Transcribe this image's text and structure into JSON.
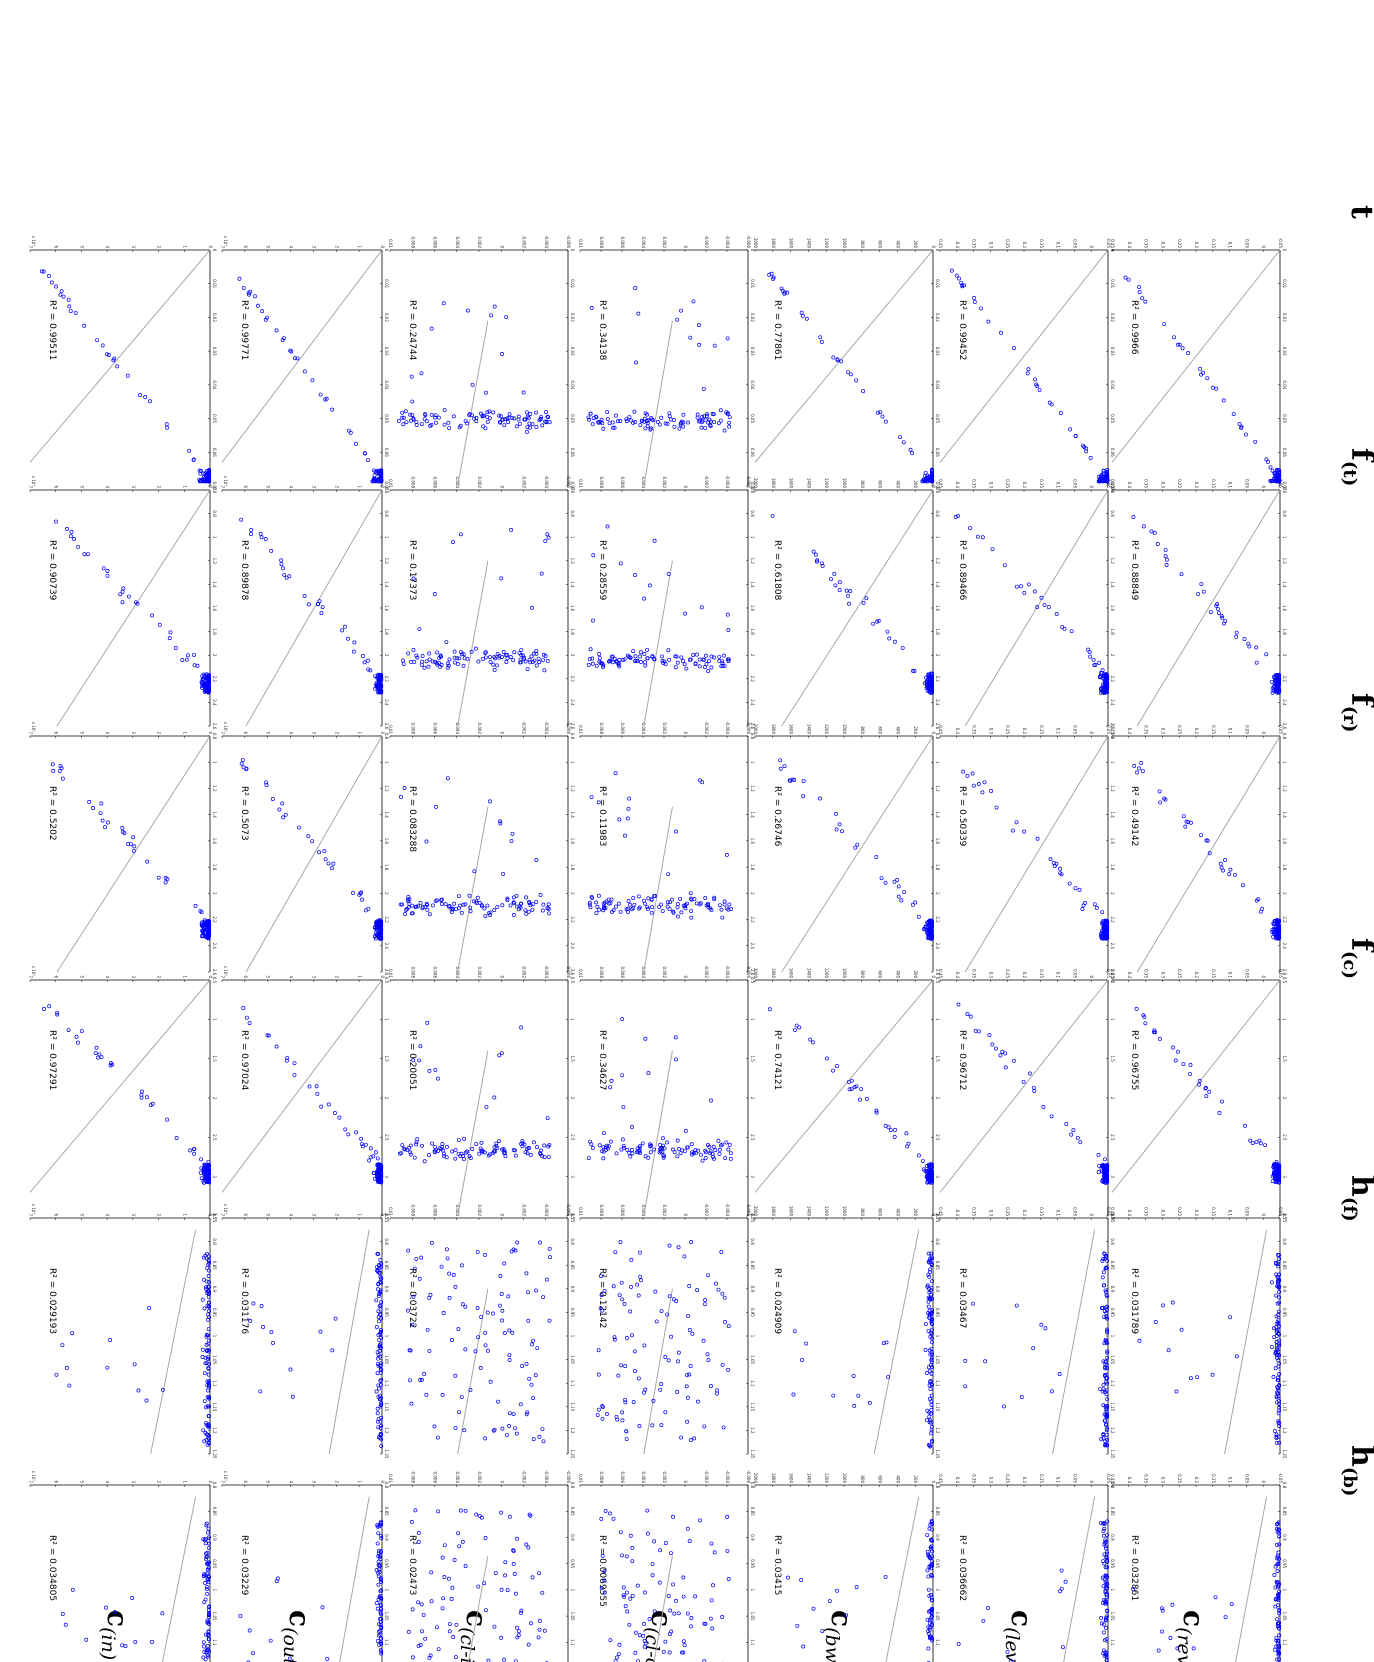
{
  "chart_data": {
    "type": "scatter",
    "layout": "small-multiples grid, rotated 90 degrees clockwise",
    "point_color": "#0000ff",
    "fit_line_color": "#a8a8a8",
    "column_labels": [
      {
        "base": "h",
        "sub": "(b)",
        "bar": true
      },
      {
        "base": "h",
        "sub": "(f)",
        "bar": true
      },
      {
        "base": "f",
        "sub": "(c)",
        "bar": true
      },
      {
        "base": "f",
        "sub": "(r)",
        "bar": true
      },
      {
        "base": "f",
        "sub": "(t)",
        "bar": true
      },
      {
        "base": "t",
        "sub": "",
        "bar": true
      }
    ],
    "row_labels": [
      {
        "base": "c",
        "sub": "(in)"
      },
      {
        "base": "c",
        "sub": "(out)"
      },
      {
        "base": "c",
        "sub": "(cl-in)"
      },
      {
        "base": "c",
        "sub": "(cl-out)"
      },
      {
        "base": "c",
        "sub": "(bw)"
      },
      {
        "base": "c",
        "sub": "(lev)"
      },
      {
        "base": "c",
        "sub": "(rev)"
      }
    ],
    "r2": [
      [
        "R² = 0.034805",
        "R² = 0.029193",
        "R² = 0.97291",
        "R² = 0.5202",
        "R² = 0.90739",
        "R² = 0.99511"
      ],
      [
        "R² = 0.03229",
        "R² = 0.031176",
        "R² = 0.97024",
        "R² = 0.5073",
        "R² = 0.89878",
        "R² = 0.99771"
      ],
      [
        "R² = 0.02473",
        "R² = 0.03722",
        "R² = 0.20051",
        "R² = 0.083288",
        "R² = 0.17373",
        "R² = 0.24744"
      ],
      [
        "R² = 0.0069555",
        "R² = 0.12142",
        "R² = 0.34627",
        "R² = 0.11983",
        "R² = 0.28559",
        "R² = 0.34138"
      ],
      [
        "R² = 0.03415",
        "R² = 0.024909",
        "R² = 0.74121",
        "R² = 0.26746",
        "R² = 0.61808",
        "R² = 0.77861"
      ],
      [
        "R² = 0.036662",
        "R² = 0.03467",
        "R² = 0.96712",
        "R² = 0.50339",
        "R² = 0.89466",
        "R² = 0.99452"
      ],
      [
        "R² = 0.032861",
        "R² = 0.031789",
        "R² = 0.96755",
        "R² = 0.49142",
        "R² = 0.88849",
        "R² = 0.9966"
      ]
    ],
    "x_ticks": [
      [
        "0.8",
        "0.85",
        "0.9",
        "0.95",
        "1",
        "1.05",
        "1.1",
        "1.15",
        "1.2",
        "1.25"
      ],
      [
        "0.75",
        "0.8",
        "0.85",
        "0.9",
        "0.95",
        "1",
        "1.05",
        "1.1",
        "1.15",
        "1.2",
        "1.25"
      ],
      [
        "0.5",
        "1",
        "1.5",
        "2",
        "2.5",
        "3",
        "3.5"
      ],
      [
        "0.8",
        "1",
        "1.2",
        "1.4",
        "1.6",
        "1.8",
        "2",
        "2.2",
        "2.4",
        "2.6"
      ],
      [
        "0.6",
        "0.8",
        "1",
        "1.2",
        "1.4",
        "1.6",
        "1.8",
        "2",
        "2.2",
        "2.4",
        "2.6"
      ],
      [
        "0",
        "0.01",
        "0.02",
        "0.03",
        "0.04",
        "0.05",
        "0.06",
        "0.07"
      ]
    ],
    "y_ticks": [
      [
        "0",
        "1",
        "2",
        "3",
        "4",
        "5",
        "6",
        "7"
      ],
      [
        "0",
        "1",
        "2",
        "3",
        "4",
        "5",
        "6",
        "7"
      ],
      [
        "-0.006",
        "-0.004",
        "-0.002",
        "0",
        "0.002",
        "0.004",
        "0.006",
        "0.008",
        "0.01"
      ],
      [
        "-0.006",
        "-0.004",
        "-0.002",
        "0",
        "0.002",
        "0.004",
        "0.006",
        "0.008",
        "0.01"
      ],
      [
        "0",
        "200",
        "400",
        "600",
        "800",
        "1000",
        "1200",
        "1400",
        "1600",
        "1800",
        "2000"
      ],
      [
        "-0.05",
        "0",
        "0.05",
        "0.1",
        "0.15",
        "0.2",
        "0.25",
        "0.3",
        "0.35",
        "0.4",
        "0.45"
      ],
      [
        "-0.05",
        "0",
        "0.05",
        "0.1",
        "0.15",
        "0.2",
        "0.25",
        "0.3",
        "0.35",
        "0.4",
        "0.45"
      ]
    ],
    "y_exponent": [
      "x 10⁷",
      "x 10⁷",
      "",
      "",
      "",
      "",
      ""
    ],
    "grid": false,
    "legend": "none"
  }
}
